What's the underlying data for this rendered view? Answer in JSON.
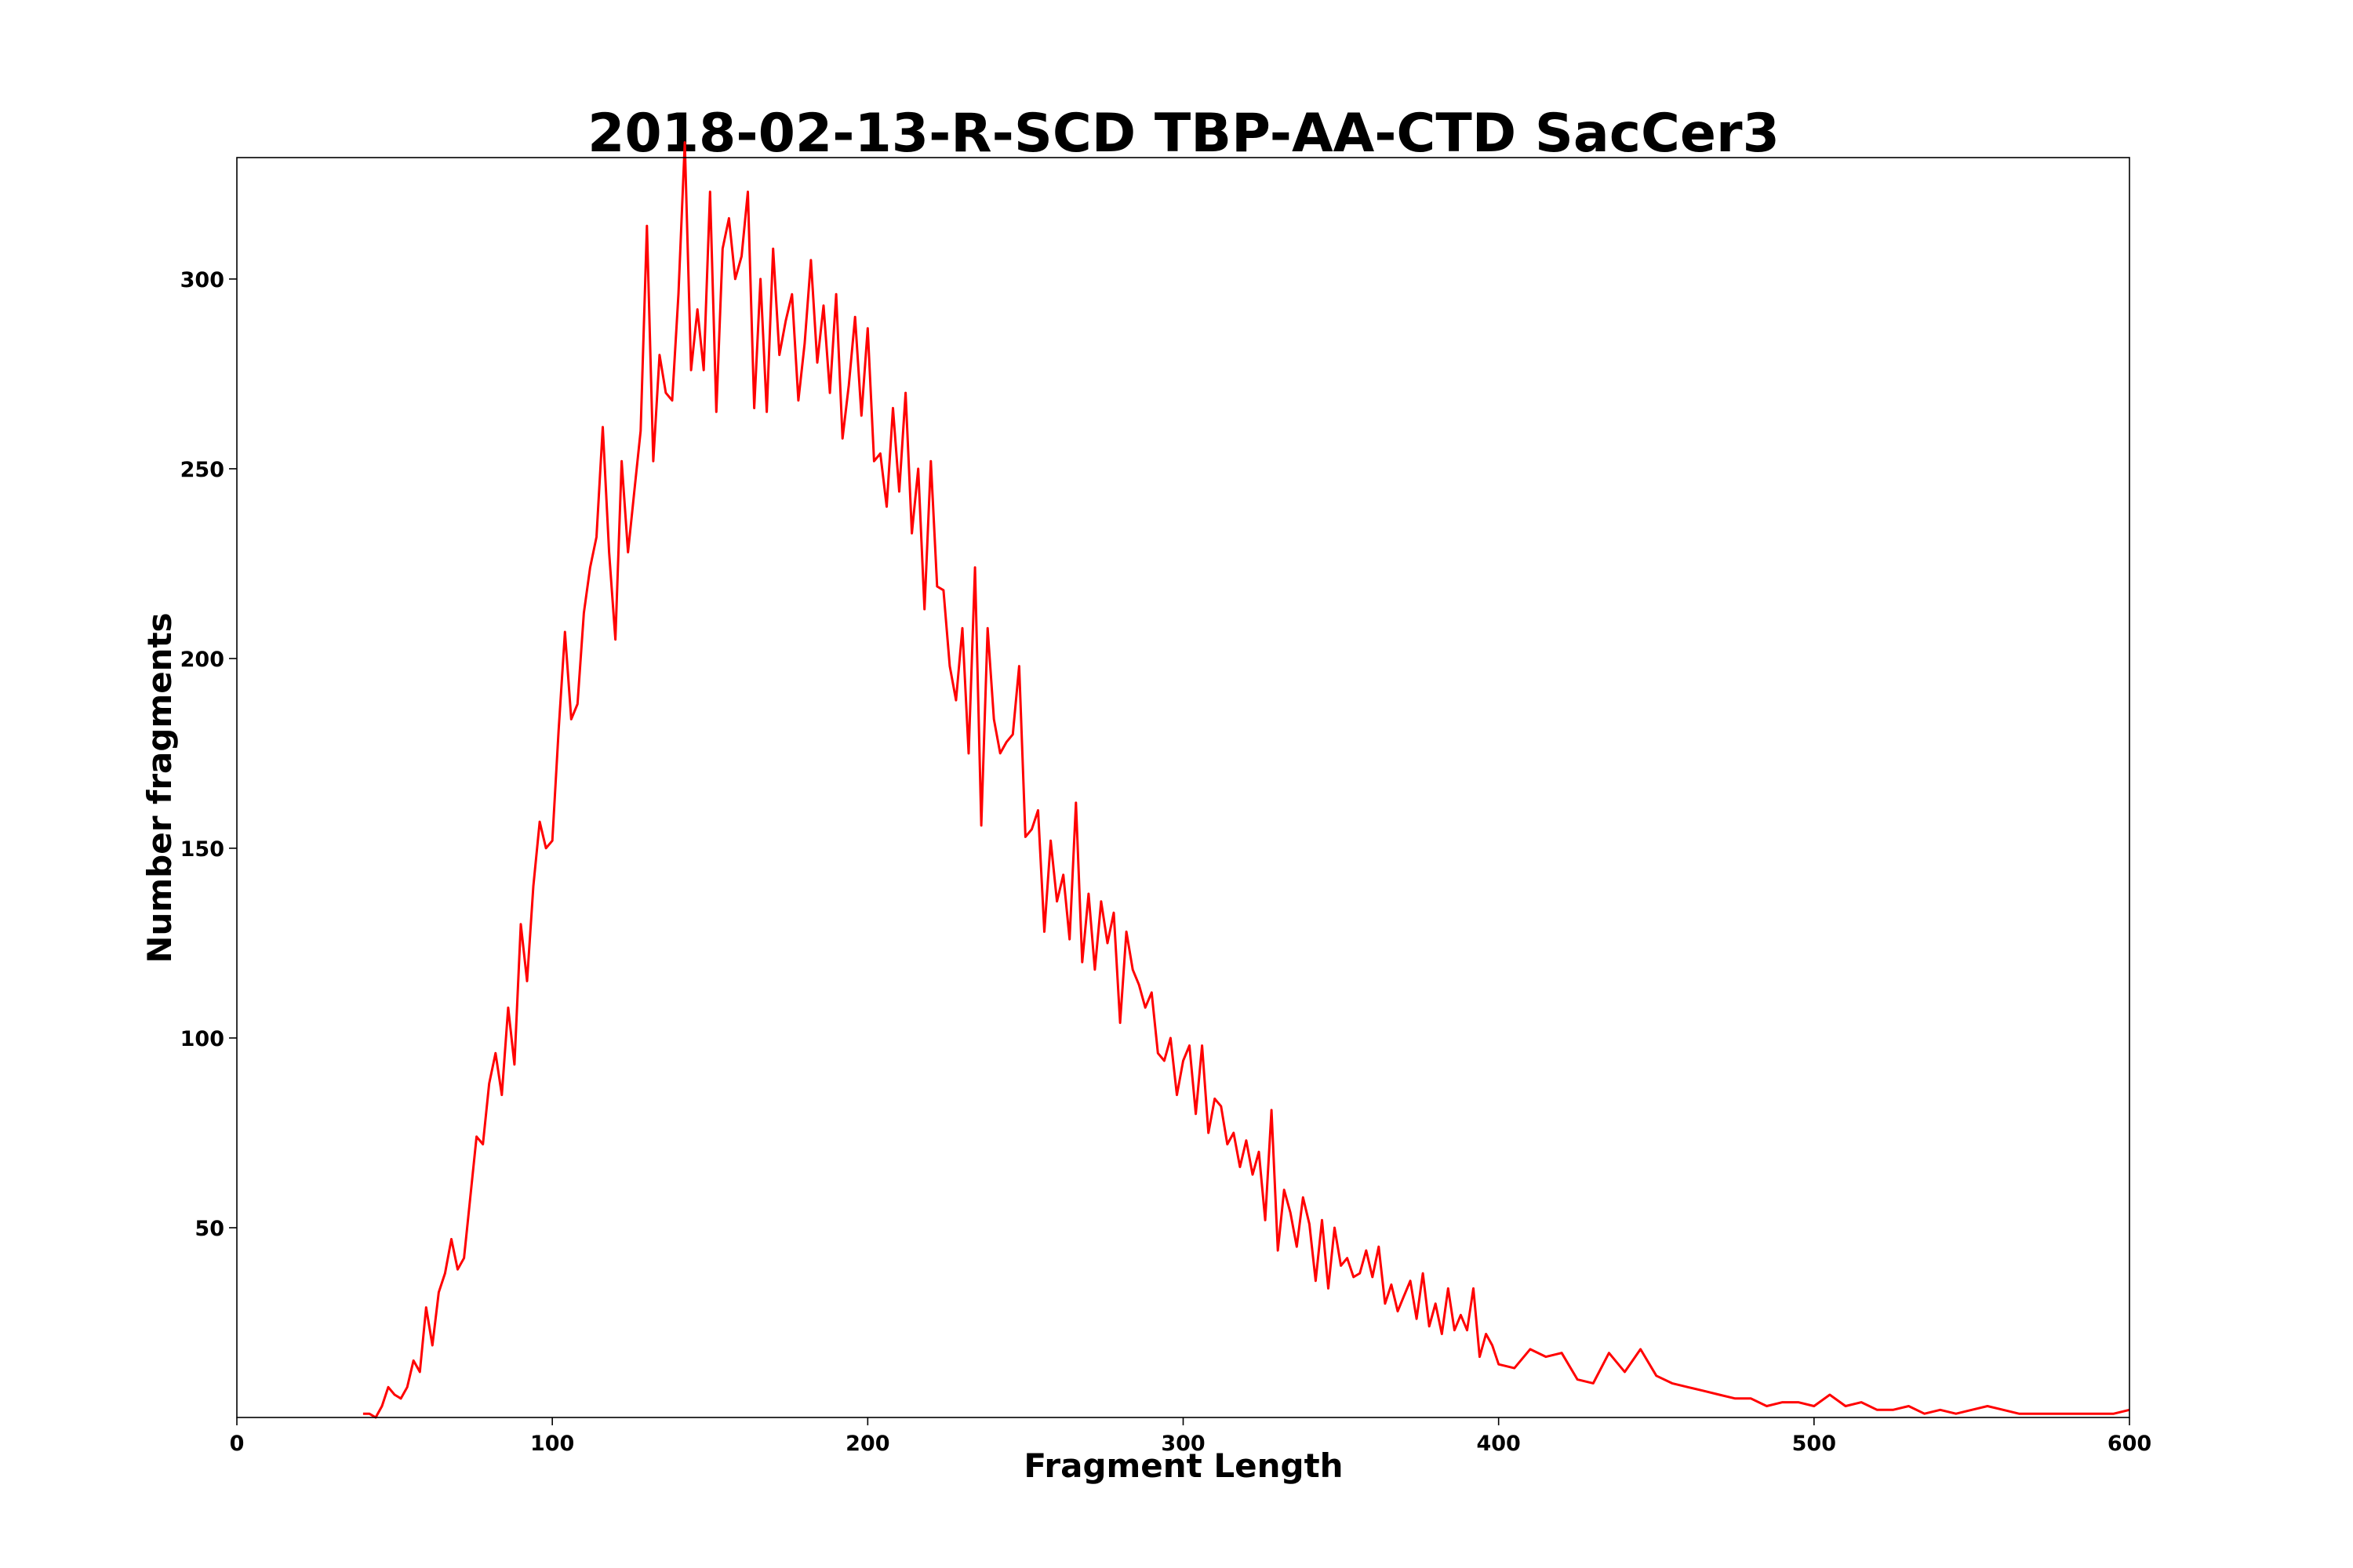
{
  "chart_data": {
    "type": "line",
    "title": "2018-02-13-R-SCD TBP-AA-CTD SacCer3",
    "xlabel": "Fragment Length",
    "ylabel": "Number fragments",
    "xlim": [
      0,
      600
    ],
    "ylim": [
      0,
      332
    ],
    "xticks": [
      0,
      100,
      200,
      300,
      400,
      500,
      600
    ],
    "yticks": [
      50,
      100,
      150,
      200,
      250,
      300
    ],
    "grid": false,
    "series": [
      {
        "name": "Fragment length distribution",
        "color": "#ff0000",
        "x": [
          40,
          42,
          44,
          46,
          48,
          50,
          52,
          54,
          56,
          58,
          60,
          62,
          64,
          66,
          68,
          70,
          72,
          74,
          76,
          78,
          80,
          82,
          84,
          86,
          88,
          90,
          92,
          94,
          96,
          98,
          100,
          102,
          104,
          106,
          108,
          110,
          112,
          114,
          116,
          118,
          120,
          122,
          124,
          126,
          128,
          130,
          132,
          134,
          136,
          138,
          140,
          142,
          144,
          146,
          148,
          150,
          152,
          154,
          156,
          158,
          160,
          162,
          164,
          166,
          168,
          170,
          172,
          174,
          176,
          178,
          180,
          182,
          184,
          186,
          188,
          190,
          192,
          194,
          196,
          198,
          200,
          202,
          204,
          206,
          208,
          210,
          212,
          214,
          216,
          218,
          220,
          222,
          224,
          226,
          228,
          230,
          232,
          234,
          236,
          238,
          240,
          242,
          244,
          246,
          248,
          250,
          252,
          254,
          256,
          258,
          260,
          262,
          264,
          266,
          268,
          270,
          272,
          274,
          276,
          278,
          280,
          282,
          284,
          286,
          288,
          290,
          292,
          294,
          296,
          298,
          300,
          302,
          304,
          306,
          308,
          310,
          312,
          314,
          316,
          318,
          320,
          322,
          324,
          326,
          328,
          330,
          332,
          334,
          336,
          338,
          340,
          342,
          344,
          346,
          348,
          350,
          352,
          354,
          356,
          358,
          360,
          362,
          364,
          366,
          368,
          370,
          372,
          374,
          376,
          378,
          380,
          382,
          384,
          386,
          388,
          390,
          392,
          394,
          396,
          398,
          400,
          405,
          410,
          415,
          420,
          425,
          430,
          435,
          440,
          445,
          450,
          455,
          460,
          465,
          470,
          475,
          480,
          485,
          490,
          495,
          500,
          505,
          510,
          515,
          520,
          525,
          530,
          535,
          540,
          545,
          550,
          555,
          560,
          565,
          570,
          575,
          580,
          585,
          590,
          595,
          600
        ],
        "values": [
          1,
          1,
          0,
          3,
          8,
          6,
          5,
          8,
          15,
          12,
          29,
          19,
          33,
          38,
          47,
          39,
          42,
          58,
          74,
          72,
          88,
          96,
          85,
          108,
          93,
          130,
          115,
          140,
          157,
          150,
          152,
          181,
          207,
          184,
          188,
          212,
          224,
          232,
          261,
          228,
          205,
          252,
          228,
          244,
          260,
          314,
          252,
          280,
          270,
          268,
          296,
          336,
          276,
          292,
          276,
          323,
          265,
          308,
          316,
          300,
          306,
          323,
          266,
          300,
          265,
          308,
          280,
          289,
          296,
          268,
          283,
          305,
          278,
          293,
          270,
          296,
          258,
          272,
          290,
          264,
          287,
          252,
          254,
          240,
          266,
          244,
          270,
          233,
          250,
          213,
          252,
          219,
          218,
          198,
          189,
          208,
          175,
          224,
          156,
          208,
          184,
          175,
          178,
          180,
          198,
          153,
          155,
          160,
          128,
          152,
          136,
          143,
          126,
          162,
          120,
          138,
          118,
          136,
          125,
          133,
          104,
          128,
          118,
          114,
          108,
          112,
          96,
          94,
          100,
          85,
          94,
          98,
          80,
          98,
          75,
          84,
          82,
          72,
          75,
          66,
          73,
          64,
          70,
          52,
          81,
          44,
          60,
          54,
          45,
          58,
          51,
          36,
          52,
          34,
          50,
          40,
          42,
          37,
          38,
          44,
          37,
          45,
          30,
          35,
          28,
          32,
          36,
          26,
          38,
          24,
          30,
          22,
          34,
          23,
          27,
          23,
          34,
          16,
          22,
          19,
          14,
          13,
          18,
          16,
          17,
          10,
          9,
          17,
          12,
          18,
          11,
          9,
          8,
          7,
          6,
          5,
          5,
          3,
          4,
          4,
          3,
          6,
          3,
          4,
          2,
          2,
          3,
          1,
          2,
          1,
          2,
          3,
          2,
          1,
          1,
          1,
          1,
          1,
          1,
          1,
          2
        ]
      }
    ]
  }
}
